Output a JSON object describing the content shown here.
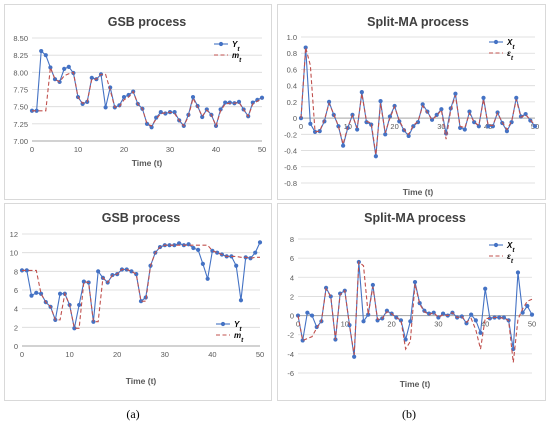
{
  "captions": {
    "left": "(a)",
    "right": "(b)"
  },
  "colors": {
    "series1": "#4472C4",
    "series2": "#C0504D",
    "grid": "#d9d9d9",
    "axis": "#a6a6a6",
    "text": "#595959",
    "title": "#404040"
  },
  "chart_data": [
    {
      "type": "line",
      "title": "GSB process",
      "xlabel": "Time (t)",
      "ylabel": "",
      "xlim": [
        0,
        50
      ],
      "ylim": [
        7.0,
        8.5
      ],
      "xticks": [
        0,
        10,
        20,
        30,
        40,
        50
      ],
      "yticks": [
        7.0,
        7.25,
        7.5,
        7.75,
        8.0,
        8.25,
        8.5
      ],
      "ytick_labels": [
        "7.00",
        "7.25",
        "7.50",
        "7.75",
        "8.00",
        "8.25",
        "8.50"
      ],
      "grid": true,
      "legend": "top-right",
      "series": [
        {
          "name": "Yt",
          "style": "solid-markers",
          "values": [
            7.44,
            7.44,
            8.31,
            8.25,
            8.07,
            7.9,
            7.86,
            8.05,
            8.08,
            7.99,
            7.64,
            7.54,
            7.57,
            7.92,
            7.9,
            7.97,
            7.49,
            7.78,
            7.49,
            7.52,
            7.64,
            7.67,
            7.72,
            7.54,
            7.47,
            7.25,
            7.2,
            7.34,
            7.42,
            7.4,
            7.42,
            7.42,
            7.3,
            7.22,
            7.38,
            7.64,
            7.51,
            7.35,
            7.46,
            7.38,
            7.22,
            7.46,
            7.56,
            7.56,
            7.55,
            7.57,
            7.46,
            7.36,
            7.56,
            7.6,
            7.63
          ]
        },
        {
          "name": "mt",
          "style": "dashed",
          "values": [
            7.44,
            7.44,
            7.44,
            7.44,
            8.07,
            7.9,
            7.86,
            7.95,
            7.98,
            8.0,
            7.64,
            7.55,
            7.57,
            7.9,
            7.9,
            7.97,
            7.97,
            7.74,
            7.49,
            7.5,
            7.6,
            7.64,
            7.72,
            7.54,
            7.47,
            7.25,
            7.22,
            7.32,
            7.4,
            7.41,
            7.42,
            7.4,
            7.3,
            7.22,
            7.36,
            7.62,
            7.5,
            7.36,
            7.45,
            7.38,
            7.22,
            7.44,
            7.54,
            7.55,
            7.55,
            7.56,
            7.46,
            7.36,
            7.54,
            7.58,
            7.62
          ]
        }
      ]
    },
    {
      "type": "line",
      "title": "Split-MA process",
      "xlabel": "Time (t)",
      "ylabel": "",
      "xlim": [
        0,
        50
      ],
      "ylim": [
        -0.8,
        1.0
      ],
      "xticks": [
        0,
        10,
        20,
        30,
        40,
        50
      ],
      "yticks": [
        -0.8,
        -0.6,
        -0.4,
        -0.2,
        0,
        0.2,
        0.4,
        0.6,
        0.8,
        1.0
      ],
      "ytick_labels": [
        "-0.8",
        "-0.6",
        "-0.4",
        "-0.2",
        "0",
        "0.2",
        "0.4",
        "0.6",
        "0.8",
        "1.0"
      ],
      "grid": true,
      "legend": "top-right",
      "series": [
        {
          "name": "Xt",
          "style": "solid-markers",
          "values": [
            0.0,
            0.87,
            -0.07,
            -0.17,
            -0.16,
            -0.04,
            0.2,
            0.04,
            -0.1,
            -0.34,
            -0.12,
            0.04,
            -0.14,
            0.32,
            -0.05,
            -0.08,
            -0.47,
            0.21,
            -0.2,
            0.02,
            0.15,
            -0.04,
            -0.15,
            -0.22,
            -0.1,
            -0.05,
            0.17,
            0.08,
            -0.02,
            0.04,
            0.11,
            -0.19,
            0.12,
            0.3,
            -0.12,
            -0.14,
            0.08,
            -0.05,
            -0.1,
            0.25,
            -0.1,
            -0.1,
            0.07,
            -0.06,
            -0.16,
            -0.05,
            0.25,
            0.02,
            0.05,
            -0.03,
            -0.1
          ]
        },
        {
          "name": "εt",
          "style": "dashed",
          "values": [
            0.0,
            0.87,
            0.65,
            -0.17,
            -0.16,
            -0.02,
            0.18,
            0.05,
            -0.1,
            -0.32,
            -0.11,
            0.03,
            -0.12,
            0.3,
            -0.04,
            -0.06,
            -0.45,
            0.18,
            -0.18,
            0.0,
            0.14,
            -0.03,
            -0.14,
            -0.2,
            -0.09,
            -0.04,
            0.15,
            0.07,
            -0.02,
            0.03,
            0.1,
            -0.26,
            0.1,
            0.28,
            -0.1,
            -0.12,
            0.06,
            -0.05,
            -0.09,
            0.23,
            -0.09,
            -0.09,
            0.06,
            -0.05,
            -0.14,
            -0.04,
            0.23,
            0.01,
            0.04,
            -0.02,
            -0.09
          ]
        }
      ]
    },
    {
      "type": "line",
      "title": "GSB process",
      "xlabel": "Time (t)",
      "ylabel": "",
      "xlim": [
        0,
        50
      ],
      "ylim": [
        0,
        12
      ],
      "xticks": [
        0,
        10,
        20,
        30,
        40,
        50
      ],
      "yticks": [
        0,
        2,
        4,
        6,
        8,
        10,
        12
      ],
      "ytick_labels": [
        "0",
        "2",
        "4",
        "6",
        "8",
        "10",
        "12"
      ],
      "grid": true,
      "legend": "bottom-right",
      "series": [
        {
          "name": "Yt",
          "style": "solid-markers",
          "values": [
            8.1,
            8.1,
            5.4,
            5.7,
            5.6,
            4.7,
            4.2,
            2.8,
            5.6,
            5.6,
            4.4,
            1.9,
            4.4,
            6.9,
            6.8,
            2.6,
            8.0,
            7.3,
            6.8,
            7.6,
            7.7,
            8.2,
            8.2,
            8.0,
            7.7,
            4.8,
            5.2,
            8.6,
            10.0,
            10.6,
            10.8,
            10.8,
            10.8,
            11.0,
            10.8,
            10.9,
            10.5,
            10.3,
            8.8,
            7.2,
            10.2,
            10.0,
            9.8,
            9.6,
            9.6,
            8.6,
            4.9,
            9.5,
            9.4,
            10.0,
            11.1
          ]
        },
        {
          "name": "mt",
          "style": "dashed",
          "values": [
            8.1,
            8.1,
            8.1,
            8.1,
            5.6,
            4.7,
            4.2,
            2.8,
            2.8,
            5.6,
            4.4,
            1.9,
            1.9,
            6.9,
            6.8,
            2.6,
            2.6,
            7.3,
            6.8,
            7.6,
            7.7,
            8.2,
            8.2,
            8.0,
            7.7,
            4.8,
            4.8,
            8.6,
            10.0,
            10.6,
            10.8,
            10.8,
            10.8,
            10.8,
            10.8,
            10.8,
            10.8,
            10.8,
            10.8,
            10.8,
            10.2,
            10.0,
            9.8,
            9.6,
            9.6,
            9.6,
            9.5,
            9.5,
            9.4,
            9.5,
            9.5
          ]
        }
      ]
    },
    {
      "type": "line",
      "title": "Split-MA process",
      "xlabel": "Time (t)",
      "ylabel": "",
      "xlim": [
        0,
        50
      ],
      "ylim": [
        -6,
        8
      ],
      "xticks": [
        0,
        10,
        20,
        30,
        40,
        50
      ],
      "yticks": [
        -6,
        -4,
        -2,
        0,
        2,
        4,
        6,
        8
      ],
      "ytick_labels": [
        "-6",
        "-4",
        "-2",
        "0",
        "2",
        "4",
        "6",
        "8"
      ],
      "grid": true,
      "legend": "top-right",
      "series": [
        {
          "name": "Xt",
          "style": "solid-markers",
          "values": [
            0.0,
            -2.6,
            0.3,
            0.0,
            -1.2,
            -0.6,
            2.9,
            2.0,
            -2.5,
            2.3,
            2.6,
            -1.0,
            -4.3,
            5.6,
            -0.6,
            0.1,
            3.2,
            -0.5,
            -0.3,
            0.5,
            0.2,
            -0.2,
            -0.5,
            -2.5,
            -0.6,
            3.5,
            1.3,
            0.5,
            0.2,
            0.3,
            -0.2,
            0.2,
            0.0,
            0.3,
            -0.2,
            -0.1,
            -0.8,
            0.1,
            -0.5,
            -1.8,
            2.8,
            -0.3,
            -0.2,
            -0.2,
            -0.2,
            -0.5,
            -3.5,
            4.5,
            0.3,
            1.0,
            0.1
          ]
        },
        {
          "name": "εt",
          "style": "dashed",
          "values": [
            0.0,
            -2.6,
            -2.4,
            -2.2,
            -1.3,
            -0.6,
            2.8,
            2.0,
            -2.5,
            2.2,
            2.6,
            -1.0,
            -4.1,
            5.6,
            5.2,
            0.1,
            3.0,
            -0.4,
            -0.3,
            0.4,
            0.2,
            -0.2,
            -0.5,
            -3.5,
            -2.7,
            3.3,
            1.2,
            0.4,
            0.1,
            0.3,
            -0.2,
            0.1,
            0.0,
            0.3,
            -0.2,
            -0.1,
            -0.7,
            -0.3,
            -1.5,
            -3.5,
            -0.3,
            -0.3,
            -0.2,
            -0.2,
            -0.3,
            -0.5,
            -4.9,
            -0.4,
            0.7,
            1.5,
            1.7
          ]
        }
      ]
    }
  ]
}
